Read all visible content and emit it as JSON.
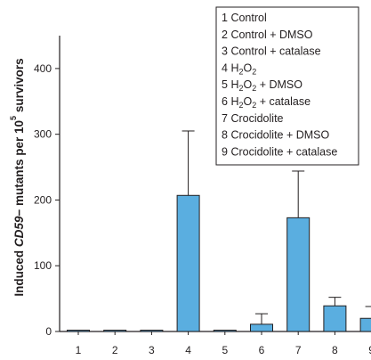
{
  "chart_data": {
    "type": "bar",
    "categories": [
      "1",
      "2",
      "3",
      "4",
      "5",
      "6",
      "7",
      "8",
      "9"
    ],
    "values": [
      2,
      2,
      2,
      207,
      2,
      11,
      173,
      39,
      20
    ],
    "errors": [
      0,
      0,
      0,
      98,
      0,
      16,
      71,
      13,
      18
    ],
    "ylim": [
      0,
      450
    ],
    "yticks": [
      "0",
      "100",
      "200",
      "300",
      "400"
    ],
    "ylabel": {
      "part1": "Induced ",
      "italic": "CD59",
      "part2": "− mutants per 10",
      "sup": "5",
      "part3": " survivors"
    },
    "legend": [
      {
        "num": "1",
        "name": "Control"
      },
      {
        "num": "2",
        "name": "Control + DMSO"
      },
      {
        "num": "3",
        "name": "Control + catalase"
      },
      {
        "num": "4",
        "name": "H2O2"
      },
      {
        "num": "5",
        "name": "H2O2 + DMSO"
      },
      {
        "num": "6",
        "name": "H2O2 + catalase"
      },
      {
        "num": "7",
        "name": "Crocidolite"
      },
      {
        "num": "8",
        "name": "Crocidolite + DMSO"
      },
      {
        "num": "9",
        "name": "Crocidolite + catalase"
      }
    ],
    "legend_placement": "top-right",
    "grid": false,
    "bar_color": "#5aaee0",
    "bar_edge": "#231f20"
  }
}
